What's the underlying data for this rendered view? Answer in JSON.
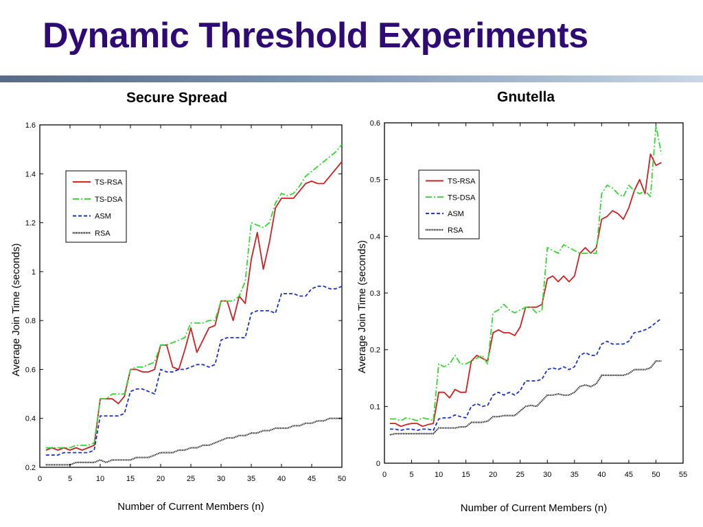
{
  "title": "Dynamic Threshold Experiments",
  "colors": {
    "title": "#2e0b74",
    "TS-RSA": "#cc1f1f",
    "TS-DSA": "#2ed92e",
    "ASM": "#1a2fcc",
    "RSA": "#000000"
  },
  "chart_data": [
    {
      "type": "line",
      "title": "Secure Spread",
      "xlabel": "Number of Current Members (n)",
      "ylabel": "Average Join Time (seconds)",
      "xlim": [
        0,
        50
      ],
      "ylim": [
        0.2,
        1.6
      ],
      "xticks": [
        0,
        5,
        10,
        15,
        20,
        25,
        30,
        35,
        40,
        45,
        50
      ],
      "yticks": [
        0.2,
        0.4,
        0.6,
        0.8,
        1,
        1.2,
        1.4,
        1.6
      ],
      "legend_position": "upper-left",
      "grid": false,
      "series": [
        {
          "name": "TS-RSA",
          "style": "solid",
          "x": [
            1,
            2,
            3,
            4,
            5,
            6,
            7,
            8,
            9,
            10,
            11,
            12,
            13,
            14,
            15,
            16,
            17,
            18,
            19,
            20,
            21,
            22,
            23,
            24,
            25,
            26,
            27,
            28,
            29,
            30,
            31,
            32,
            33,
            34,
            35,
            36,
            37,
            38,
            39,
            40,
            41,
            42,
            43,
            44,
            45,
            46,
            47,
            48,
            49,
            50
          ],
          "y": [
            0.27,
            0.28,
            0.27,
            0.28,
            0.27,
            0.28,
            0.27,
            0.28,
            0.29,
            0.48,
            0.48,
            0.48,
            0.46,
            0.49,
            0.6,
            0.6,
            0.59,
            0.59,
            0.6,
            0.7,
            0.7,
            0.61,
            0.6,
            0.68,
            0.77,
            0.67,
            0.72,
            0.77,
            0.78,
            0.88,
            0.88,
            0.8,
            0.9,
            0.87,
            1.05,
            1.16,
            1.01,
            1.12,
            1.26,
            1.3,
            1.3,
            1.3,
            1.33,
            1.36,
            1.37,
            1.36,
            1.36,
            1.39,
            1.42,
            1.45
          ]
        },
        {
          "name": "TS-DSA",
          "style": "dashdot",
          "x": [
            1,
            2,
            3,
            4,
            5,
            6,
            7,
            8,
            9,
            10,
            11,
            12,
            13,
            14,
            15,
            16,
            17,
            18,
            19,
            20,
            21,
            22,
            23,
            24,
            25,
            26,
            27,
            28,
            29,
            30,
            31,
            32,
            33,
            34,
            35,
            36,
            37,
            38,
            39,
            40,
            41,
            42,
            43,
            44,
            45,
            46,
            47,
            48,
            49,
            50
          ],
          "y": [
            0.28,
            0.28,
            0.28,
            0.28,
            0.28,
            0.29,
            0.29,
            0.29,
            0.3,
            0.48,
            0.48,
            0.5,
            0.5,
            0.5,
            0.6,
            0.61,
            0.61,
            0.62,
            0.63,
            0.7,
            0.7,
            0.71,
            0.72,
            0.73,
            0.79,
            0.79,
            0.79,
            0.8,
            0.8,
            0.88,
            0.88,
            0.88,
            0.9,
            0.96,
            1.2,
            1.19,
            1.18,
            1.2,
            1.28,
            1.32,
            1.31,
            1.32,
            1.35,
            1.39,
            1.41,
            1.43,
            1.45,
            1.47,
            1.49,
            1.52
          ]
        },
        {
          "name": "ASM",
          "style": "dashed",
          "x": [
            1,
            2,
            3,
            4,
            5,
            6,
            7,
            8,
            9,
            10,
            11,
            12,
            13,
            14,
            15,
            16,
            17,
            18,
            19,
            20,
            21,
            22,
            23,
            24,
            25,
            26,
            27,
            28,
            29,
            30,
            31,
            32,
            33,
            34,
            35,
            36,
            37,
            38,
            39,
            40,
            41,
            42,
            43,
            44,
            45,
            46,
            47,
            48,
            49,
            50
          ],
          "y": [
            0.25,
            0.25,
            0.25,
            0.26,
            0.26,
            0.26,
            0.26,
            0.26,
            0.27,
            0.41,
            0.41,
            0.41,
            0.41,
            0.42,
            0.51,
            0.52,
            0.52,
            0.51,
            0.5,
            0.6,
            0.59,
            0.59,
            0.6,
            0.6,
            0.61,
            0.62,
            0.62,
            0.61,
            0.62,
            0.72,
            0.73,
            0.73,
            0.73,
            0.73,
            0.83,
            0.84,
            0.84,
            0.84,
            0.83,
            0.91,
            0.91,
            0.91,
            0.9,
            0.9,
            0.93,
            0.94,
            0.94,
            0.93,
            0.93,
            0.94
          ]
        },
        {
          "name": "RSA",
          "style": "dotted",
          "x": [
            1,
            2,
            3,
            4,
            5,
            6,
            7,
            8,
            9,
            10,
            11,
            12,
            13,
            14,
            15,
            16,
            17,
            18,
            19,
            20,
            21,
            22,
            23,
            24,
            25,
            26,
            27,
            28,
            29,
            30,
            31,
            32,
            33,
            34,
            35,
            36,
            37,
            38,
            39,
            40,
            41,
            42,
            43,
            44,
            45,
            46,
            47,
            48,
            49,
            50
          ],
          "y": [
            0.21,
            0.21,
            0.21,
            0.21,
            0.21,
            0.22,
            0.22,
            0.22,
            0.22,
            0.23,
            0.22,
            0.23,
            0.23,
            0.23,
            0.23,
            0.24,
            0.24,
            0.24,
            0.25,
            0.26,
            0.26,
            0.26,
            0.27,
            0.27,
            0.28,
            0.28,
            0.29,
            0.29,
            0.3,
            0.31,
            0.32,
            0.32,
            0.33,
            0.33,
            0.34,
            0.34,
            0.35,
            0.35,
            0.36,
            0.36,
            0.36,
            0.37,
            0.37,
            0.38,
            0.38,
            0.39,
            0.39,
            0.4,
            0.4,
            0.4
          ]
        }
      ]
    },
    {
      "type": "line",
      "title": "Gnutella",
      "xlabel": "Number of Current Members (n)",
      "ylabel": "Average Join Time (seconds)",
      "xlim": [
        0,
        55
      ],
      "ylim": [
        0,
        0.6
      ],
      "xticks": [
        0,
        5,
        10,
        15,
        20,
        25,
        30,
        35,
        40,
        45,
        50,
        55
      ],
      "yticks": [
        0,
        0.1,
        0.2,
        0.3,
        0.4,
        0.5,
        0.6
      ],
      "legend_position": "upper-left",
      "grid": false,
      "series": [
        {
          "name": "TS-RSA",
          "style": "solid",
          "x": [
            1,
            2,
            3,
            4,
            5,
            6,
            7,
            8,
            9,
            10,
            11,
            12,
            13,
            14,
            15,
            16,
            17,
            18,
            19,
            20,
            21,
            22,
            23,
            24,
            25,
            26,
            27,
            28,
            29,
            30,
            31,
            32,
            33,
            34,
            35,
            36,
            37,
            38,
            39,
            40,
            41,
            42,
            43,
            44,
            45,
            46,
            47,
            48,
            49,
            50,
            51
          ],
          "y": [
            0.07,
            0.07,
            0.065,
            0.068,
            0.07,
            0.07,
            0.065,
            0.068,
            0.07,
            0.125,
            0.125,
            0.115,
            0.13,
            0.125,
            0.125,
            0.18,
            0.19,
            0.185,
            0.18,
            0.23,
            0.235,
            0.23,
            0.23,
            0.225,
            0.24,
            0.275,
            0.275,
            0.275,
            0.28,
            0.325,
            0.33,
            0.32,
            0.33,
            0.32,
            0.33,
            0.37,
            0.38,
            0.37,
            0.38,
            0.43,
            0.435,
            0.445,
            0.44,
            0.43,
            0.45,
            0.48,
            0.5,
            0.475,
            0.545,
            0.525,
            0.53
          ]
        },
        {
          "name": "TS-DSA",
          "style": "dashdot",
          "x": [
            1,
            2,
            3,
            4,
            5,
            6,
            7,
            8,
            9,
            10,
            11,
            12,
            13,
            14,
            15,
            16,
            17,
            18,
            19,
            20,
            21,
            22,
            23,
            24,
            25,
            26,
            27,
            28,
            29,
            30,
            31,
            32,
            33,
            34,
            35,
            36,
            37,
            38,
            39,
            40,
            41,
            42,
            43,
            44,
            45,
            46,
            47,
            48,
            49,
            50,
            51
          ],
          "y": [
            0.078,
            0.078,
            0.075,
            0.08,
            0.078,
            0.075,
            0.08,
            0.078,
            0.075,
            0.175,
            0.17,
            0.175,
            0.19,
            0.175,
            0.175,
            0.18,
            0.185,
            0.19,
            0.175,
            0.265,
            0.27,
            0.28,
            0.27,
            0.265,
            0.27,
            0.275,
            0.275,
            0.265,
            0.27,
            0.38,
            0.375,
            0.37,
            0.385,
            0.38,
            0.375,
            0.37,
            0.37,
            0.37,
            0.37,
            0.475,
            0.49,
            0.485,
            0.475,
            0.47,
            0.49,
            0.48,
            0.475,
            0.48,
            0.47,
            0.595,
            0.545
          ]
        },
        {
          "name": "ASM",
          "style": "dashed",
          "x": [
            1,
            2,
            3,
            4,
            5,
            6,
            7,
            8,
            9,
            10,
            11,
            12,
            13,
            14,
            15,
            16,
            17,
            18,
            19,
            20,
            21,
            22,
            23,
            24,
            25,
            26,
            27,
            28,
            29,
            30,
            31,
            32,
            33,
            34,
            35,
            36,
            37,
            38,
            39,
            40,
            41,
            42,
            43,
            44,
            45,
            46,
            47,
            48,
            49,
            50,
            51
          ],
          "y": [
            0.06,
            0.06,
            0.058,
            0.06,
            0.06,
            0.058,
            0.06,
            0.06,
            0.058,
            0.078,
            0.08,
            0.08,
            0.085,
            0.082,
            0.08,
            0.1,
            0.105,
            0.1,
            0.102,
            0.12,
            0.125,
            0.12,
            0.125,
            0.12,
            0.128,
            0.145,
            0.145,
            0.145,
            0.148,
            0.165,
            0.168,
            0.165,
            0.17,
            0.165,
            0.17,
            0.19,
            0.195,
            0.19,
            0.19,
            0.21,
            0.215,
            0.21,
            0.21,
            0.21,
            0.215,
            0.23,
            0.232,
            0.235,
            0.24,
            0.248,
            0.255
          ]
        },
        {
          "name": "RSA",
          "style": "dotted",
          "x": [
            1,
            2,
            3,
            4,
            5,
            6,
            7,
            8,
            9,
            10,
            11,
            12,
            13,
            14,
            15,
            16,
            17,
            18,
            19,
            20,
            21,
            22,
            23,
            24,
            25,
            26,
            27,
            28,
            29,
            30,
            31,
            32,
            33,
            34,
            35,
            36,
            37,
            38,
            39,
            40,
            41,
            42,
            43,
            44,
            45,
            46,
            47,
            48,
            49,
            50,
            51
          ],
          "y": [
            0.05,
            0.052,
            0.052,
            0.052,
            0.052,
            0.052,
            0.052,
            0.052,
            0.052,
            0.062,
            0.062,
            0.062,
            0.062,
            0.064,
            0.064,
            0.072,
            0.072,
            0.072,
            0.074,
            0.082,
            0.082,
            0.084,
            0.084,
            0.084,
            0.092,
            0.1,
            0.102,
            0.1,
            0.11,
            0.12,
            0.12,
            0.122,
            0.12,
            0.12,
            0.125,
            0.135,
            0.138,
            0.135,
            0.14,
            0.155,
            0.155,
            0.155,
            0.155,
            0.155,
            0.158,
            0.165,
            0.165,
            0.165,
            0.168,
            0.18,
            0.18
          ]
        }
      ]
    }
  ]
}
